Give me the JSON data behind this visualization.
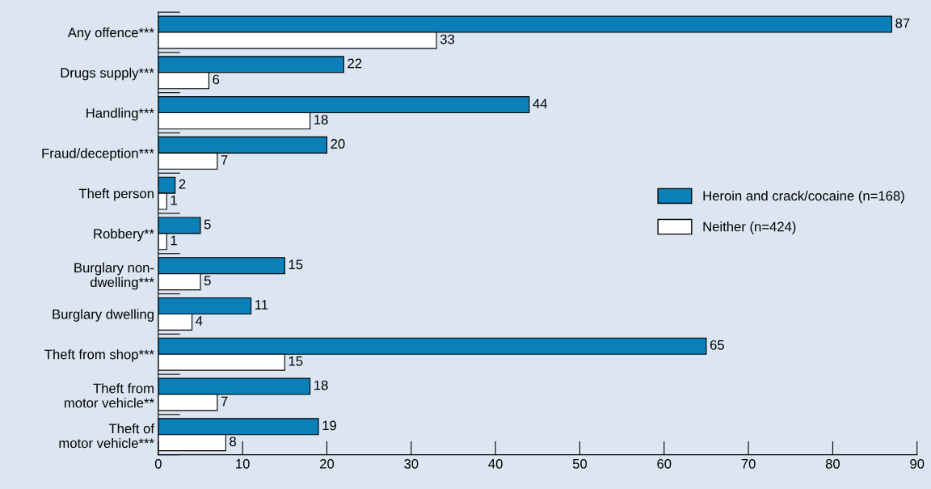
{
  "chart_data": {
    "type": "bar",
    "orientation": "horizontal",
    "categories": [
      "Any offence***",
      "Drugs supply***",
      "Handling***",
      "Fraud/deception***",
      "Theft person",
      "Robbery**",
      "Burglary non-\ndwelling***",
      "Burglary dwelling",
      "Theft from shop***",
      "Theft from\nmotor vehicle**",
      "Theft of\nmotor vehicle***"
    ],
    "series": [
      {
        "name": "Heroin and crack/cocaine (n=168)",
        "color": "#0a7fb8",
        "values": [
          87,
          22,
          44,
          20,
          2,
          5,
          15,
          11,
          65,
          18,
          19
        ]
      },
      {
        "name": "Neither (n=424)",
        "color": "#ffffff",
        "values": [
          33,
          6,
          18,
          7,
          1,
          1,
          5,
          4,
          15,
          7,
          8
        ]
      }
    ],
    "xlim": [
      0,
      90
    ],
    "xticks": [
      0,
      10,
      20,
      30,
      40,
      50,
      60,
      70,
      80,
      90
    ],
    "data_labels": true,
    "legend": "right",
    "grid": false
  }
}
